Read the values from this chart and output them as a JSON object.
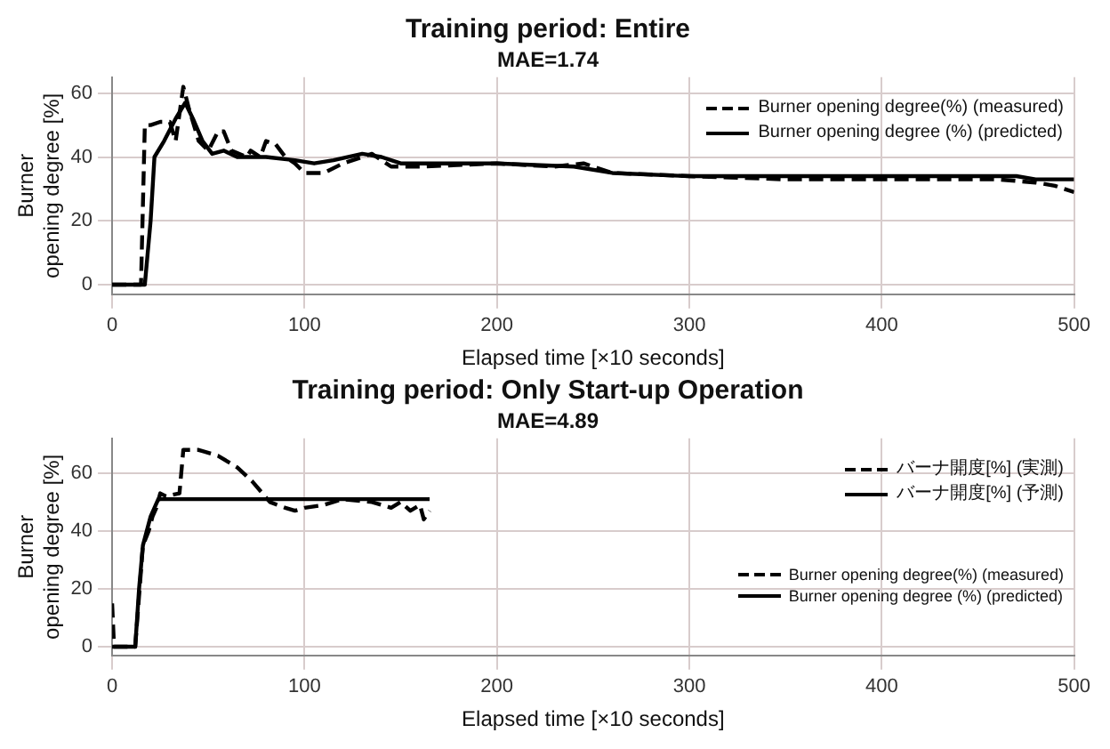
{
  "chart_data": [
    {
      "type": "line",
      "title": "Training period: Entire",
      "subtitle": "MAE=1.74",
      "xlabel": "Elapsed time [×10 seconds]",
      "ylabel": "Burner\nopening degree [%]",
      "xlim": [
        0,
        500
      ],
      "xticks": [
        0,
        100,
        200,
        300,
        400,
        500
      ],
      "ylim": [
        -3,
        65
      ],
      "yticks": [
        0,
        20,
        40,
        60
      ],
      "grid": true,
      "legend": "top right",
      "series": [
        {
          "name": "Burner opening degree(%) (measured)",
          "color": "#000000",
          "line_style": "dashed",
          "x": [
            0,
            15,
            17,
            20,
            25,
            30,
            33,
            37,
            40,
            45,
            50,
            55,
            58,
            62,
            70,
            72,
            77,
            80,
            85,
            90,
            95,
            100,
            110,
            120,
            130,
            135,
            145,
            160,
            200,
            230,
            245,
            260,
            300,
            350,
            400,
            460,
            480,
            490,
            500
          ],
          "values": [
            0,
            0,
            50,
            50,
            51,
            51,
            45,
            62,
            55,
            45,
            42,
            48,
            48,
            42,
            40,
            42,
            40,
            45,
            44,
            40,
            38,
            35,
            35,
            38,
            40,
            41,
            37,
            37,
            38,
            37,
            38,
            35,
            34,
            33,
            33,
            33,
            32,
            31,
            29
          ]
        },
        {
          "name": "Burner opening degree (%) (predicted)",
          "color": "#000000",
          "line_style": "solid",
          "x": [
            0,
            17,
            20,
            22,
            27,
            33,
            38,
            42,
            47,
            52,
            58,
            65,
            80,
            95,
            105,
            115,
            130,
            140,
            150,
            200,
            240,
            260,
            300,
            400,
            470,
            480,
            500
          ],
          "values": [
            0,
            0,
            20,
            40,
            45,
            52,
            57,
            52,
            45,
            41,
            42,
            40,
            40,
            39,
            38,
            39,
            41,
            40,
            38,
            38,
            37,
            35,
            34,
            34,
            34,
            33,
            33
          ]
        }
      ]
    },
    {
      "type": "line",
      "title": "Training period: Only Start-up Operation",
      "subtitle": "MAE=4.89",
      "xlabel": "Elapsed time [×10 seconds]",
      "ylabel": "Burner\nopening degree [%]",
      "xlim": [
        0,
        500
      ],
      "xticks": [
        0,
        100,
        200,
        300,
        400,
        500
      ],
      "ylim": [
        -3,
        72
      ],
      "yticks": [
        0,
        20,
        40,
        60
      ],
      "grid": true,
      "legend": "top right",
      "annotations": [
        "Burner opening degree(%) (measured)",
        "Burner opening degree (%) (predicted)"
      ],
      "series": [
        {
          "name": "バーナ開度[%] (実測)",
          "color": "#000000",
          "line_style": "dashed",
          "x": [
            0,
            1,
            12,
            16,
            19,
            21,
            23,
            25,
            28,
            35,
            37,
            45,
            55,
            65,
            73,
            82,
            90,
            95,
            100,
            110,
            120,
            135,
            145,
            150,
            155,
            160,
            162,
            165
          ],
          "values": [
            15,
            0,
            0,
            35,
            40,
            45,
            48,
            53,
            52,
            53,
            68,
            68,
            66,
            62,
            57,
            50,
            48,
            47,
            48,
            49,
            51,
            50,
            48,
            50,
            47,
            49,
            44,
            47
          ]
        },
        {
          "name": "バーナ開度[%] (予測)",
          "color": "#000000",
          "line_style": "solid",
          "x": [
            0,
            12,
            14,
            16,
            20,
            24,
            165
          ],
          "values": [
            0,
            0,
            20,
            35,
            45,
            51,
            51
          ]
        }
      ]
    }
  ]
}
